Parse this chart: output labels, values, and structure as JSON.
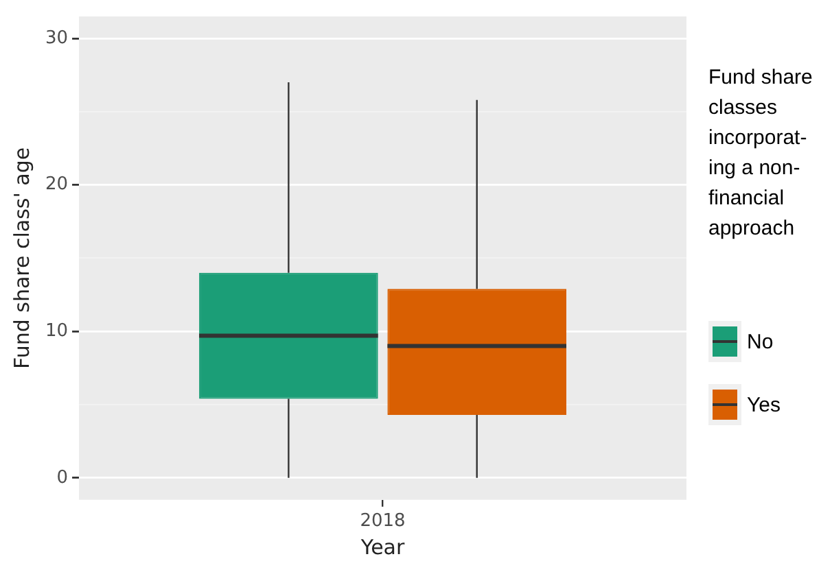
{
  "chart_data": {
    "type": "box",
    "xlabel": "Year",
    "ylabel": "Fund share class' age",
    "legend_title": "Fund share\nclasses\nincorporat-\ning a non-\nfinancial\napproach",
    "legend": "right",
    "grid": "y",
    "categories": [
      "2018"
    ],
    "ylim": [
      -1.5,
      31.5
    ],
    "yticks": [
      0,
      {
        "value": 5,
        "label": null
      },
      10,
      {
        "value": 15,
        "label": null
      },
      20,
      {
        "value": 25,
        "label": null
      },
      30
    ],
    "series": [
      {
        "name": "No",
        "color": "#1b9e77",
        "boxes": [
          {
            "low": 0,
            "q1": 5.4,
            "median": 9.7,
            "q3": 14,
            "high": 27
          }
        ]
      },
      {
        "name": "Yes",
        "color": "#d95f02",
        "boxes": [
          {
            "low": 0,
            "q1": 4.3,
            "median": 9,
            "q3": 12.9,
            "high": 25.8
          }
        ]
      }
    ]
  }
}
